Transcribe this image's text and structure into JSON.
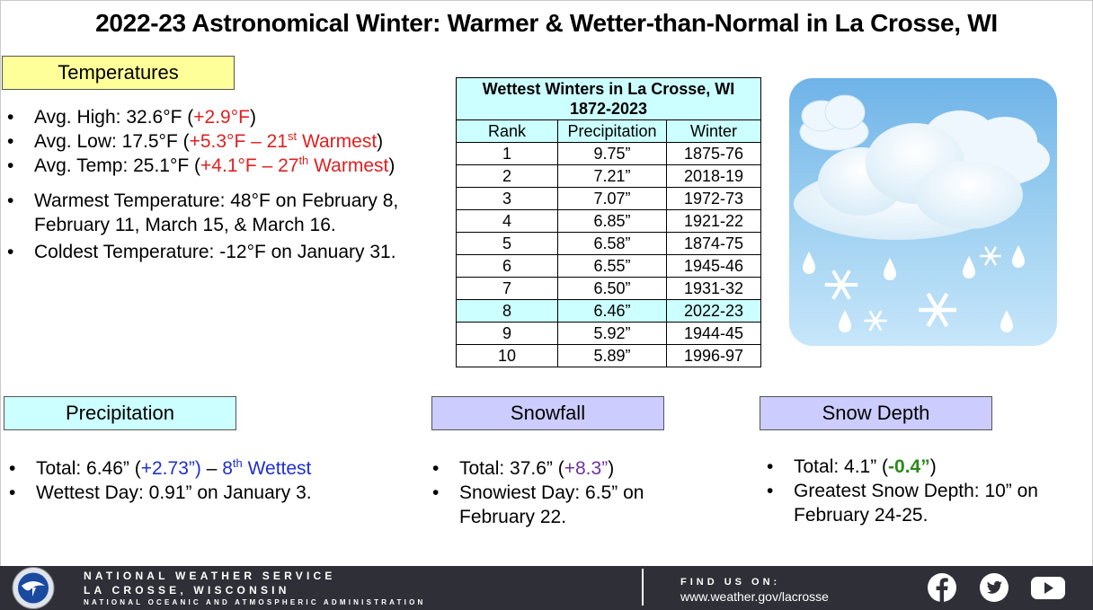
{
  "title": "2022-23 Astronomical Winter: Warmer & Wetter-than-Normal in La Crosse, WI",
  "temperatures": {
    "header": "Temperatures",
    "avg_high_label": "Avg. High:  32.6°F (",
    "avg_high_dep": "+2.9°F",
    "avg_low_label": "Avg. Low:  17.5°F (",
    "avg_low_dep": "+5.3°F – 21",
    "avg_low_sup": "st",
    "avg_low_rank": " Warmest",
    "avg_temp_label": "Avg. Temp:  25.1°F (",
    "avg_temp_dep": "+4.1°F – 27",
    "avg_temp_sup": "th",
    "avg_temp_rank": " Warmest",
    "close_paren": ")",
    "warmest": "Warmest Temperature: 48°F on February 8, February 11, March 15, & March 16.",
    "coldest": "Coldest Temperature: -12°F on January 31."
  },
  "table": {
    "title_line1": "Wettest Winters in La Crosse, WI",
    "title_line2": "1872-2023",
    "col_rank": "Rank",
    "col_precip": "Precipitation",
    "col_winter": "Winter",
    "rows": [
      {
        "rank": "1",
        "precip": "9.75”",
        "winter": "1875-76"
      },
      {
        "rank": "2",
        "precip": "7.21”",
        "winter": "2018-19"
      },
      {
        "rank": "3",
        "precip": "7.07”",
        "winter": "1972-73"
      },
      {
        "rank": "4",
        "precip": "6.85”",
        "winter": "1921-22"
      },
      {
        "rank": "5",
        "precip": "6.58”",
        "winter": "1874-75"
      },
      {
        "rank": "6",
        "precip": "6.55”",
        "winter": "1945-46"
      },
      {
        "rank": "7",
        "precip": "6.50”",
        "winter": "1931-32"
      },
      {
        "rank": "8",
        "precip": "6.46”",
        "winter": "2022-23"
      },
      {
        "rank": "9",
        "precip": "5.92”",
        "winter": "1944-45"
      },
      {
        "rank": "10",
        "precip": "5.89”",
        "winter": "1996-97"
      }
    ]
  },
  "precipitation": {
    "header": "Precipitation",
    "total_label": "Total:  6.46” (",
    "total_dep": "+2.73”)",
    "total_sep": " – ",
    "total_rank_num": "8",
    "total_rank_sup": "th",
    "total_rank_text": " Wettest",
    "wettest_day": "Wettest Day: 0.91” on January 3."
  },
  "snowfall": {
    "header": "Snowfall",
    "total_label": "Total:  37.6” (",
    "total_dep": "+8.3”",
    "close_paren": ")",
    "snowiest_day": "Snowiest Day: 6.5” on February 22."
  },
  "snow_depth": {
    "header": "Snow Depth",
    "total_label": "Total:  4.1” (",
    "total_dep": "-0.4”",
    "close_paren": ")",
    "greatest": "Greatest Snow Depth: 10” on February 24-25."
  },
  "footer": {
    "line1": "NATIONAL WEATHER SERVICE",
    "line2": "LA CROSSE, WISCONSIN",
    "line3": "NATIONAL OCEANIC AND ATMOSPHERIC ADMINISTRATION",
    "find_us": "FIND US ON:",
    "url": "www.weather.gov/lacrosse"
  },
  "colors": {
    "positive_departure": "#e02020",
    "precip_departure": "#1f2fd0",
    "snowfall_departure": "#7030a0",
    "snow_depth_departure": "#2b8a1a",
    "header_yellow": "#ffff99",
    "header_cyan": "#ccffff",
    "header_lavender": "#ccccff",
    "footer_bg": "#2f3037"
  },
  "icons": [
    "nws-logo-icon",
    "facebook-icon",
    "twitter-icon",
    "youtube-icon",
    "rain-snow-cloud-icon"
  ]
}
